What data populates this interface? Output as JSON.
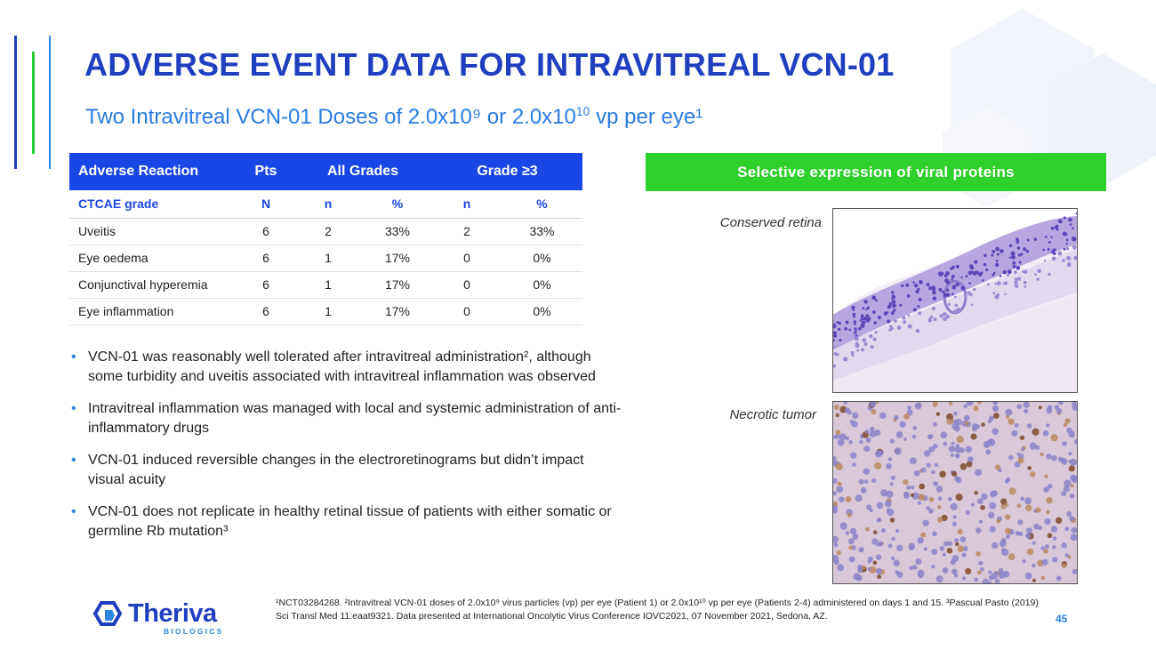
{
  "slide": {
    "title": "ADVERSE EVENT DATA FOR INTRAVITREAL VCN-01",
    "subtitle_prefix": "Two Intravitreal VCN-01 Doses of 2.0x10⁹ or 2.0x10",
    "subtitle_exp": "10",
    "subtitle_suffix": " vp per eye¹",
    "page_number": "45"
  },
  "table": {
    "headers": [
      "Adverse Reaction",
      "Pts",
      "All Grades",
      "Grade ≥3"
    ],
    "subheaders": [
      "CTCAE grade",
      "N",
      "n",
      "%",
      "n",
      "%"
    ],
    "rows": [
      [
        "Uveitis",
        "6",
        "2",
        "33%",
        "2",
        "33%"
      ],
      [
        "Eye oedema",
        "6",
        "1",
        "17%",
        "0",
        "0%"
      ],
      [
        "Conjunctival hyperemia",
        "6",
        "1",
        "17%",
        "0",
        "0%"
      ],
      [
        "Eye inflammation",
        "6",
        "1",
        "17%",
        "0",
        "0%"
      ]
    ]
  },
  "bullets": [
    "VCN-01 was reasonably well tolerated after intravitreal administration², although some turbidity and uveitis associated with intravitreal inflammation was observed",
    "Intravitreal inflammation was managed with local and systemic administration of anti-inflammatory drugs",
    "VCN-01 induced reversible changes in the electroretinograms but didn’t impact visual acuity",
    "VCN-01 does not replicate in healthy retinal tissue of patients with either somatic or germline Rb mutation³"
  ],
  "panel": {
    "banner": "Selective expression of viral proteins",
    "label_retina": "Conserved retina",
    "label_tumor": "Necrotic tumor"
  },
  "footnote": "¹NCT03284268. ²Intravitreal VCN-01 doses of 2.0x10⁹ virus particles (vp) per eye (Patient 1) or 2.0x10¹⁰ vp per eye (Patients 2-4) administered on days 1 and 15. ³Pascual Pasto (2019) Sci Transl Med 11:eaat9321. Data presented at International Oncolytic Virus Conference IOVC2021, 07 November 2021, Sedona, AZ.",
  "logo": {
    "name": "Theriva",
    "tagline": "BIOLOGICS"
  },
  "colors": {
    "brand_blue": "#1f3fbf",
    "accent_blue": "#2a86e0",
    "table_header": "#1a46e6",
    "banner_green": "#2ed12b"
  }
}
